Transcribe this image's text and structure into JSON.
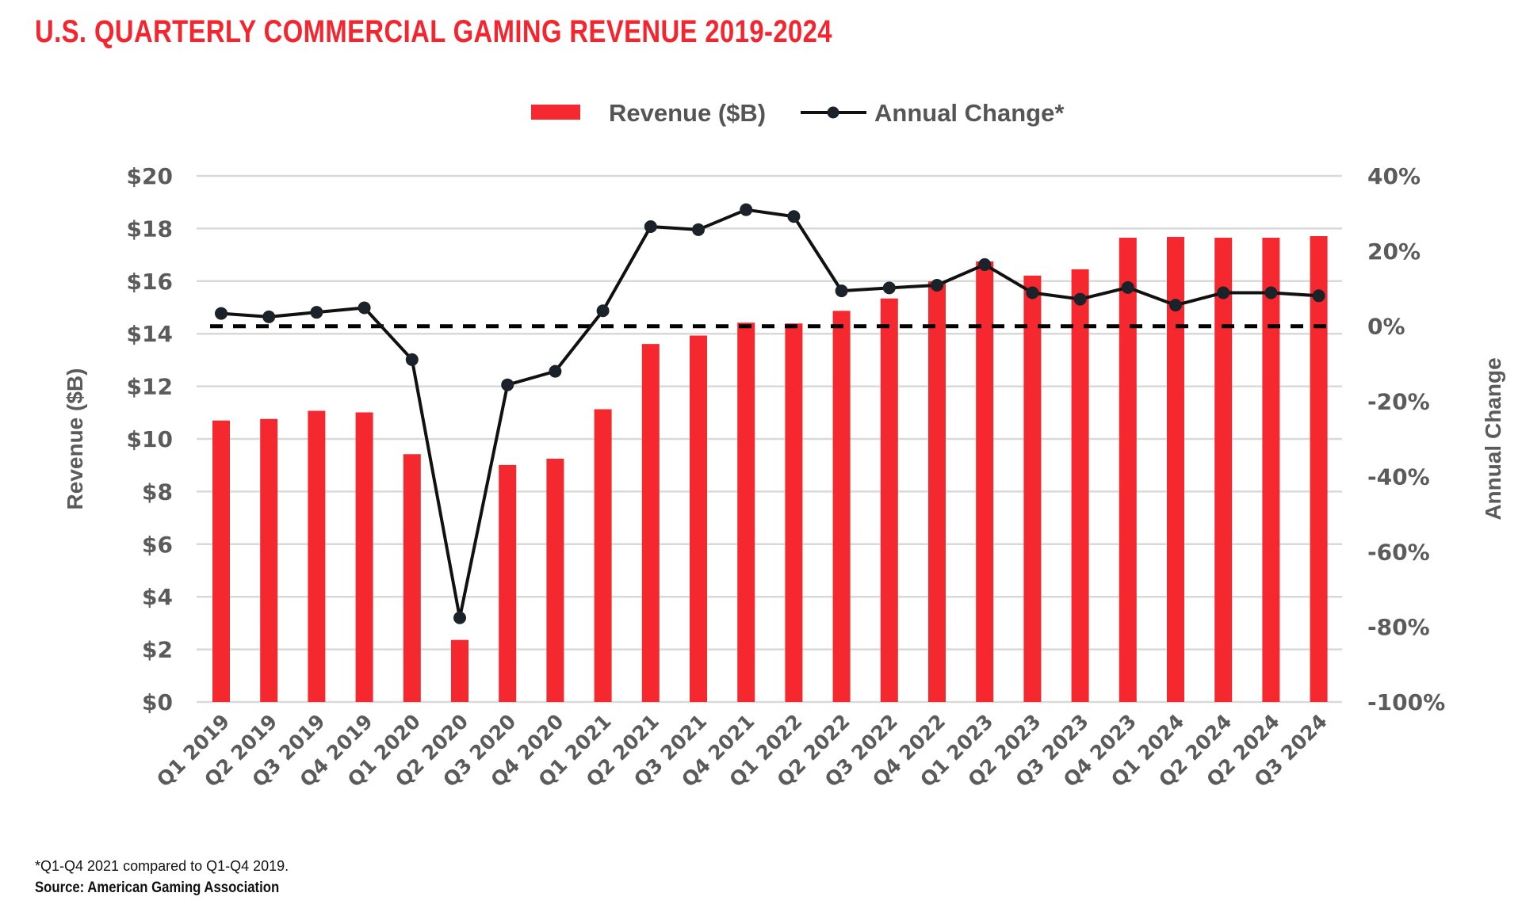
{
  "header": {
    "title": "U.S. QUARTERLY COMMERCIAL GAMING REVENUE 2019-2024"
  },
  "footer": {
    "footnote": "*Q1-Q4 2021 compared to Q1-Q4 2019.",
    "source": "Source: American Gaming Association"
  },
  "colors": {
    "title": "#f5252f",
    "bar": "#f5282f",
    "line": "#111111",
    "marker": "#1c2229",
    "grid": "#d9d9d9",
    "axis_text": "#5b5b5b"
  },
  "chart_data": {
    "type": "bar",
    "title": "U.S. QUARTERLY COMMERCIAL GAMING REVENUE 2019-2024",
    "categories": [
      "Q1 2019",
      "Q2 2019",
      "Q3 2019",
      "Q4 2019",
      "Q1 2020",
      "Q2 2020",
      "Q3 2020",
      "Q4 2020",
      "Q1 2021",
      "Q2 2021",
      "Q3 2021",
      "Q4 2021",
      "Q1 2022",
      "Q2 2022",
      "Q3 2022",
      "Q4 2022",
      "Q1 2023",
      "Q2 2023",
      "Q3 2023",
      "Q4 2023",
      "Q1 2024",
      "Q2 2024",
      "Q2 2024",
      "Q3 2024"
    ],
    "series": [
      {
        "name": "Revenue ($B)",
        "type": "bar",
        "axis": "left",
        "values": [
          10.7,
          10.76,
          11.07,
          11.01,
          9.42,
          2.36,
          9.01,
          9.25,
          11.13,
          13.61,
          13.93,
          14.42,
          14.39,
          14.87,
          15.34,
          15.99,
          16.75,
          16.21,
          16.45,
          17.65,
          17.68,
          17.65,
          17.65,
          17.71
        ]
      },
      {
        "name": "Annual Change*",
        "type": "line",
        "axis": "right",
        "unit": "%",
        "values": [
          3.4,
          2.5,
          3.7,
          4.9,
          -8.9,
          -77.6,
          -15.6,
          -12.0,
          4.1,
          26.5,
          25.7,
          31.0,
          29.2,
          9.4,
          10.2,
          10.9,
          16.4,
          8.9,
          7.2,
          10.3,
          5.6,
          8.9,
          8.9,
          8.1
        ]
      }
    ],
    "reference_line": {
      "axis": "right",
      "value": 0,
      "style": "dashed"
    },
    "xlabel": "",
    "ylabel": "Revenue ($B)",
    "ylabel_right": "Annual Change",
    "ylim": [
      0,
      20
    ],
    "ylim_right": [
      -100,
      40
    ],
    "yticks": [
      "$0",
      "$2",
      "$4",
      "$6",
      "$8",
      "$10",
      "$12",
      "$14",
      "$16",
      "$18",
      "$20"
    ],
    "yticks_right": [
      "-100%",
      "-80%",
      "-60%",
      "-40%",
      "-20%",
      "0%",
      "20%",
      "40%"
    ],
    "legend": {
      "position": "top-center",
      "entries": [
        "Revenue ($B)",
        "Annual Change*"
      ]
    },
    "grid": true
  }
}
